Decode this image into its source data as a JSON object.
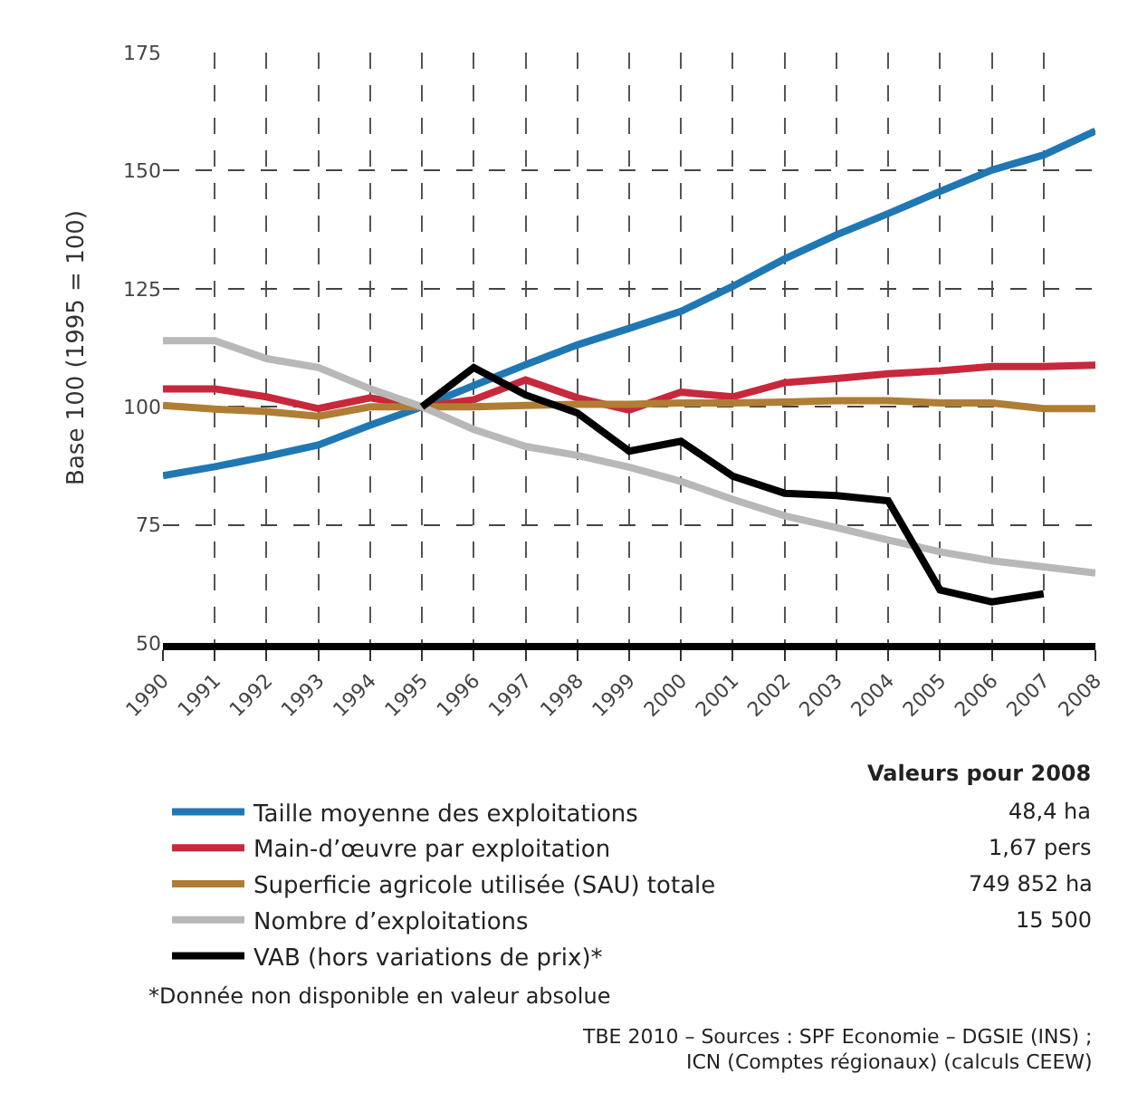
{
  "chart_data": {
    "type": "line",
    "ylabel": "Base 100 (1995 = 100)",
    "x": [
      1990,
      1991,
      1992,
      1993,
      1994,
      1995,
      1996,
      1997,
      1998,
      1999,
      2000,
      2001,
      2002,
      2003,
      2004,
      2005,
      2006,
      2007,
      2008
    ],
    "series": [
      {
        "name": "Taille moyenne des exploitations",
        "color": "#1f78b4",
        "values": [
          85.4,
          87.3,
          89.5,
          91.9,
          96.1,
          100,
          104.5,
          108.9,
          113.1,
          116.6,
          120.2,
          125.5,
          131.3,
          136.4,
          140.9,
          145.6,
          150.1,
          153.3,
          158.4
        ]
      },
      {
        "name": "Main-d’œuvre par exploitation",
        "color": "#c8283c",
        "values": [
          103.8,
          103.8,
          102.1,
          99.6,
          101.9,
          100,
          101.5,
          105.7,
          101.9,
          99.3,
          103.1,
          102.1,
          105.1,
          106,
          107,
          107.6,
          108.5,
          108.5,
          108.8
        ]
      },
      {
        "name": "Superficie agricole utilisée (SAU) totale",
        "color": "#b07d34",
        "values": [
          100.3,
          99.5,
          99,
          98,
          100,
          100,
          100,
          100.3,
          100.5,
          100.5,
          100.8,
          100.8,
          101,
          101.3,
          101.3,
          100.8,
          100.8,
          99.6,
          99.6
        ]
      },
      {
        "name": "Nombre d’exploitations",
        "color": "#b8b8b8",
        "values": [
          114,
          114,
          110.2,
          108.3,
          103.8,
          100,
          95.2,
          91.6,
          89.7,
          87.2,
          84.2,
          80.4,
          76.9,
          74.4,
          71.8,
          69.3,
          67.4,
          66.1,
          64.8
        ]
      },
      {
        "name": "VAB (hors variations de prix)*",
        "color": "#000000",
        "values": [
          null,
          null,
          null,
          null,
          null,
          100,
          108.3,
          102.5,
          98.7,
          90.6,
          92.7,
          85.3,
          81.7,
          81.2,
          80.1,
          61.2,
          58.7,
          60.4,
          null
        ]
      }
    ],
    "xlim": [
      1990,
      2008
    ],
    "xticks": [
      1990,
      1991,
      1992,
      1993,
      1994,
      1995,
      1996,
      1997,
      1998,
      1999,
      2000,
      2001,
      2002,
      2003,
      2004,
      2005,
      2006,
      2007,
      2008
    ],
    "ylim": [
      50,
      175
    ],
    "yticks": [
      50,
      75,
      100,
      125,
      150,
      175
    ],
    "grid": true,
    "legend": "bottom left",
    "marker": "none",
    "line_style": "solid",
    "annotations": [
      "Valeurs pour 2008",
      "48,4 ha",
      "1,67 pers",
      "749 852 ha",
      "15 500",
      "*Donnée non disponible en valeur absolue",
      "TBE 2010 – Sources : SPF Economie – DGSIE (INS) ;",
      "ICN (Comptes régionaux) (calculs CEEW)"
    ]
  }
}
